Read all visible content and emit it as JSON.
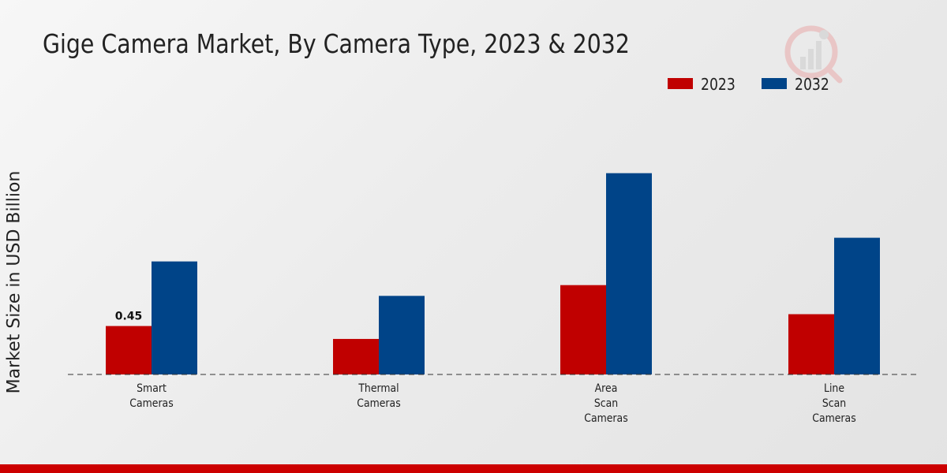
{
  "chart_data": {
    "type": "bar",
    "title": "Gige Camera Market, By Camera Type, 2023 & 2032",
    "ylabel": "Market Size in USD Billion",
    "xlabel": "",
    "categories": [
      [
        "Smart",
        "Cameras"
      ],
      [
        "Thermal",
        "Cameras"
      ],
      [
        "Area",
        "Scan",
        "Cameras"
      ],
      [
        "Line",
        "Scan",
        "Cameras"
      ]
    ],
    "series": [
      {
        "name": "2023",
        "color": "#c00000",
        "values": [
          0.45,
          0.33,
          0.83,
          0.56
        ]
      },
      {
        "name": "2032",
        "color": "#004488",
        "values": [
          1.05,
          0.73,
          1.87,
          1.27
        ]
      }
    ],
    "data_labels": [
      {
        "series": 0,
        "index": 0,
        "text": "0.45"
      }
    ],
    "ylim": [
      0,
      2.6
    ],
    "grid": false,
    "legend": "top-right",
    "baseline": "dashed"
  }
}
